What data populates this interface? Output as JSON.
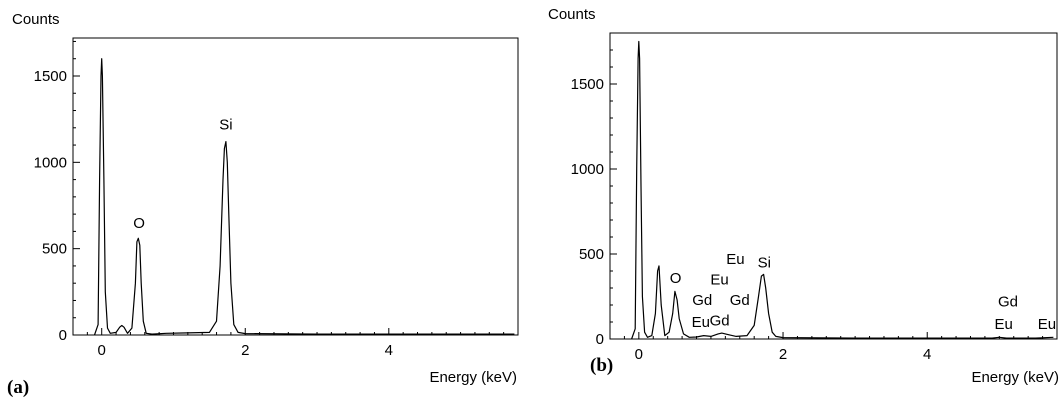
{
  "chart_data": [
    {
      "panel_label": "(a)",
      "type": "line",
      "ylabel": "Counts",
      "xlabel": "Energy (keV)",
      "xlim": [
        -0.4,
        5.8
      ],
      "ylim": [
        0,
        1720
      ],
      "x_ticks": [
        0,
        2,
        4
      ],
      "y_ticks": [
        0,
        500,
        1000,
        1500
      ],
      "x_tick_labels": [
        "0",
        "2",
        "4"
      ],
      "y_tick_labels": [
        "0",
        "500",
        "1000",
        "1500"
      ],
      "grid": false,
      "series": [
        {
          "x": [
            -0.1,
            -0.05,
            -0.03,
            -0.01,
            0.0,
            0.01,
            0.03,
            0.05,
            0.08,
            0.12,
            0.2,
            0.25,
            0.28,
            0.31,
            0.36,
            0.42,
            0.47,
            0.49,
            0.51,
            0.53,
            0.55,
            0.58,
            0.62,
            0.7,
            0.9,
            1.2,
            1.5,
            1.6,
            1.65,
            1.69,
            1.71,
            1.73,
            1.75,
            1.77,
            1.8,
            1.84,
            1.9,
            2.0,
            3.0,
            4.0,
            5.0,
            5.75
          ],
          "y": [
            0,
            60,
            900,
            1500,
            1600,
            1500,
            900,
            250,
            40,
            10,
            15,
            45,
            55,
            45,
            10,
            40,
            300,
            540,
            560,
            520,
            300,
            80,
            10,
            5,
            10,
            12,
            15,
            80,
            400,
            900,
            1080,
            1120,
            1000,
            700,
            300,
            60,
            15,
            8,
            5,
            5,
            5,
            5
          ]
        }
      ],
      "annotations": [
        {
          "text": "O",
          "x": 0.52,
          "y": 620
        },
        {
          "text": "Si",
          "x": 1.73,
          "y": 1190
        }
      ]
    },
    {
      "panel_label": "(b)",
      "type": "line",
      "ylabel": "Counts",
      "xlabel": "Energy (keV)",
      "xlim": [
        -0.4,
        5.8
      ],
      "ylim": [
        0,
        1800
      ],
      "x_ticks": [
        0,
        2,
        4
      ],
      "y_ticks": [
        0,
        500,
        1000,
        1500
      ],
      "x_tick_labels": [
        "0",
        "2",
        "4"
      ],
      "y_tick_labels": [
        "0",
        "500",
        "1000",
        "1500"
      ],
      "grid": false,
      "series": [
        {
          "x": [
            -0.1,
            -0.05,
            -0.03,
            -0.01,
            0.0,
            0.01,
            0.03,
            0.05,
            0.08,
            0.12,
            0.18,
            0.23,
            0.26,
            0.28,
            0.31,
            0.36,
            0.42,
            0.47,
            0.5,
            0.53,
            0.56,
            0.62,
            0.7,
            0.8,
            0.9,
            1.0,
            1.1,
            1.15,
            1.25,
            1.35,
            1.5,
            1.6,
            1.66,
            1.7,
            1.73,
            1.76,
            1.8,
            1.85,
            1.9,
            2.0,
            3.0,
            4.0,
            4.9,
            5.0,
            5.1,
            5.5,
            5.75
          ],
          "y": [
            0,
            60,
            1000,
            1650,
            1750,
            1650,
            900,
            250,
            40,
            10,
            20,
            150,
            400,
            430,
            200,
            20,
            40,
            150,
            280,
            230,
            120,
            30,
            10,
            12,
            20,
            15,
            30,
            35,
            25,
            15,
            20,
            80,
            250,
            370,
            380,
            300,
            150,
            40,
            15,
            8,
            5,
            5,
            5,
            10,
            5,
            5,
            10
          ]
        }
      ],
      "annotations": [
        {
          "text": "O",
          "x": 0.51,
          "y": 330
        },
        {
          "text": "Si",
          "x": 1.74,
          "y": 420
        },
        {
          "text": "Eu",
          "x": 0.86,
          "y": 70
        },
        {
          "text": "Gd",
          "x": 0.88,
          "y": 200
        },
        {
          "text": "Gd",
          "x": 1.12,
          "y": 80
        },
        {
          "text": "Eu",
          "x": 1.12,
          "y": 320
        },
        {
          "text": "Gd",
          "x": 1.4,
          "y": 200
        },
        {
          "text": "Eu",
          "x": 1.34,
          "y": 440
        },
        {
          "text": "Gd",
          "x": 5.12,
          "y": 190
        },
        {
          "text": "Eu",
          "x": 5.06,
          "y": 60
        },
        {
          "text": "Eu",
          "x": 5.66,
          "y": 60
        }
      ]
    }
  ]
}
